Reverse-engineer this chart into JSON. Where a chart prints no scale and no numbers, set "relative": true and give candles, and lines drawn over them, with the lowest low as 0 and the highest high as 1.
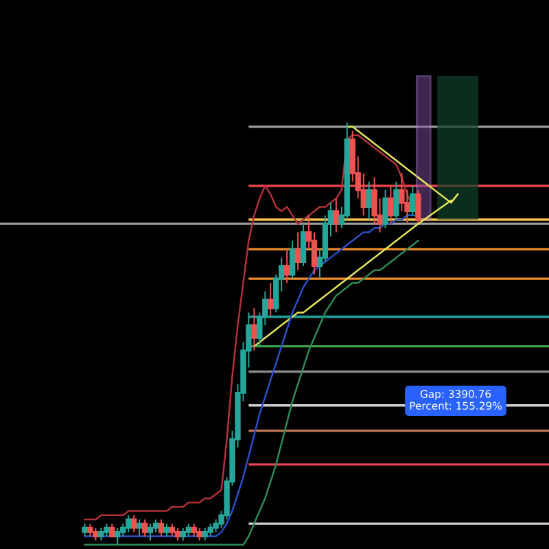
{
  "chart_data": {
    "type": "candlestick",
    "relative": true,
    "categories": [
      null,
      null,
      null,
      null,
      null,
      null,
      null,
      null,
      null,
      null,
      null,
      null,
      null,
      null,
      null,
      null,
      null,
      null,
      null,
      null,
      null,
      null,
      null,
      null,
      null,
      null,
      null,
      null,
      null,
      null,
      null,
      null,
      null,
      null,
      null,
      null,
      null,
      null,
      null,
      null,
      null,
      null,
      null,
      null,
      null,
      null,
      null,
      null,
      null,
      null,
      null,
      null,
      null,
      null,
      null,
      null,
      null,
      null,
      null,
      null,
      null,
      null
    ],
    "ohlc": [
      [
        0.03,
        0.05,
        0.02,
        0.04
      ],
      [
        0.04,
        0.05,
        0.02,
        0.03
      ],
      [
        0.03,
        0.04,
        0.01,
        0.02
      ],
      [
        0.02,
        0.04,
        0.01,
        0.03
      ],
      [
        0.03,
        0.05,
        0.02,
        0.04
      ],
      [
        0.04,
        0.05,
        0.02,
        0.02
      ],
      [
        0.02,
        0.04,
        0.0,
        0.03
      ],
      [
        0.03,
        0.05,
        0.02,
        0.04
      ],
      [
        0.04,
        0.07,
        0.03,
        0.06
      ],
      [
        0.06,
        0.07,
        0.03,
        0.04
      ],
      [
        0.04,
        0.06,
        0.02,
        0.05
      ],
      [
        0.05,
        0.06,
        0.02,
        0.03
      ],
      [
        0.03,
        0.05,
        0.01,
        0.04
      ],
      [
        0.04,
        0.06,
        0.03,
        0.05
      ],
      [
        0.05,
        0.06,
        0.02,
        0.03
      ],
      [
        0.03,
        0.05,
        0.02,
        0.04
      ],
      [
        0.04,
        0.05,
        0.02,
        0.03
      ],
      [
        0.03,
        0.04,
        0.01,
        0.02
      ],
      [
        0.02,
        0.04,
        0.01,
        0.03
      ],
      [
        0.03,
        0.05,
        0.02,
        0.04
      ],
      [
        0.04,
        0.05,
        0.02,
        0.03
      ],
      [
        0.03,
        0.04,
        0.01,
        0.02
      ],
      [
        0.02,
        0.04,
        0.01,
        0.03
      ],
      [
        0.03,
        0.05,
        0.02,
        0.04
      ],
      [
        0.04,
        0.06,
        0.03,
        0.05
      ],
      [
        0.05,
        0.08,
        0.04,
        0.07
      ],
      [
        0.07,
        0.16,
        0.06,
        0.15
      ],
      [
        0.15,
        0.27,
        0.14,
        0.25
      ],
      [
        0.25,
        0.38,
        0.23,
        0.36
      ],
      [
        0.36,
        0.48,
        0.34,
        0.46
      ],
      [
        0.46,
        0.55,
        0.42,
        0.52
      ],
      [
        0.52,
        0.56,
        0.46,
        0.49
      ],
      [
        0.49,
        0.55,
        0.47,
        0.54
      ],
      [
        0.54,
        0.6,
        0.52,
        0.58
      ],
      [
        0.58,
        0.62,
        0.54,
        0.56
      ],
      [
        0.56,
        0.64,
        0.55,
        0.63
      ],
      [
        0.63,
        0.68,
        0.6,
        0.66
      ],
      [
        0.66,
        0.7,
        0.62,
        0.64
      ],
      [
        0.64,
        0.72,
        0.63,
        0.7
      ],
      [
        0.7,
        0.74,
        0.65,
        0.67
      ],
      [
        0.67,
        0.76,
        0.66,
        0.74
      ],
      [
        0.74,
        0.78,
        0.7,
        0.72
      ],
      [
        0.72,
        0.74,
        0.64,
        0.66
      ],
      [
        0.66,
        0.7,
        0.63,
        0.68
      ],
      [
        0.68,
        0.78,
        0.67,
        0.76
      ],
      [
        0.76,
        0.81,
        0.73,
        0.79
      ],
      [
        0.79,
        0.82,
        0.74,
        0.76
      ],
      [
        0.76,
        0.8,
        0.75,
        0.78
      ],
      [
        0.78,
        1.0,
        0.77,
        0.96
      ],
      [
        0.96,
        0.98,
        0.86,
        0.88
      ],
      [
        0.88,
        0.92,
        0.82,
        0.84
      ],
      [
        0.84,
        0.88,
        0.78,
        0.8
      ],
      [
        0.8,
        0.86,
        0.77,
        0.84
      ],
      [
        0.84,
        0.87,
        0.76,
        0.78
      ],
      [
        0.78,
        0.82,
        0.74,
        0.76
      ],
      [
        0.76,
        0.84,
        0.75,
        0.82
      ],
      [
        0.82,
        0.85,
        0.76,
        0.78
      ],
      [
        0.78,
        0.86,
        0.77,
        0.84
      ],
      [
        0.84,
        0.88,
        0.79,
        0.81
      ],
      [
        0.81,
        0.84,
        0.76,
        0.79
      ],
      [
        0.79,
        0.85,
        0.78,
        0.83
      ],
      [
        0.83,
        0.84,
        0.76,
        0.77
      ]
    ],
    "series": [
      {
        "type": "line",
        "color": "#b2303a",
        "values": [
          0.06,
          0.06,
          0.06,
          0.07,
          0.07,
          0.07,
          0.07,
          0.07,
          0.08,
          0.08,
          0.08,
          0.08,
          0.08,
          0.08,
          0.08,
          0.08,
          0.09,
          0.09,
          0.09,
          0.1,
          0.1,
          0.1,
          0.11,
          0.11,
          0.12,
          0.13,
          0.25,
          0.4,
          0.52,
          0.62,
          0.72,
          0.78,
          0.82,
          0.85,
          0.83,
          0.8,
          0.79,
          0.8,
          0.78,
          0.76,
          0.77,
          0.78,
          0.79,
          0.8,
          0.8,
          0.81,
          0.82,
          0.84,
          0.96,
          0.97,
          0.97,
          0.96,
          0.95,
          0.94,
          0.93,
          0.92,
          0.91,
          0.9,
          0.87,
          0.83,
          0.8,
          0.78
        ]
      },
      {
        "type": "line",
        "color": "#2e8b57",
        "values": [
          0.0,
          0.0,
          0.0,
          0.0,
          0.0,
          0.0,
          0.0,
          0.0,
          0.0,
          0.0,
          0.0,
          0.0,
          0.0,
          0.0,
          0.0,
          0.0,
          0.0,
          0.0,
          0.0,
          0.0,
          0.0,
          0.0,
          0.0,
          0.0,
          0.0,
          0.0,
          0.0,
          0.0,
          0.0,
          0.0,
          0.02,
          0.05,
          0.08,
          0.11,
          0.15,
          0.19,
          0.24,
          0.29,
          0.34,
          0.38,
          0.42,
          0.46,
          0.49,
          0.52,
          0.55,
          0.57,
          0.59,
          0.6,
          0.61,
          0.62,
          0.62,
          0.63,
          0.64,
          0.65,
          0.65,
          0.66,
          0.67,
          0.68,
          0.69,
          0.7,
          0.71,
          0.72
        ]
      },
      {
        "type": "line",
        "color": "#e6e65a",
        "values": [
          null,
          null,
          null,
          null,
          null,
          null,
          null,
          null,
          null,
          null,
          null,
          null,
          null,
          null,
          null,
          null,
          null,
          null,
          null,
          null,
          null,
          null,
          null,
          null,
          null,
          null,
          null,
          null,
          null,
          null,
          null,
          null,
          null,
          null,
          null,
          null,
          null,
          null,
          null,
          null,
          null,
          null,
          null,
          null,
          null,
          null,
          null,
          null,
          0.99,
          0.99,
          0.98,
          0.97,
          0.96,
          0.95,
          0.94,
          0.93,
          0.92,
          0.91,
          0.9,
          0.89,
          0.88,
          0.87
        ]
      },
      {
        "type": "line",
        "color": "#e6e65a",
        "values": [
          null,
          null,
          null,
          null,
          null,
          null,
          null,
          null,
          null,
          null,
          null,
          null,
          null,
          null,
          null,
          null,
          null,
          null,
          null,
          null,
          null,
          null,
          null,
          null,
          null,
          null,
          null,
          null,
          null,
          null,
          null,
          0.47,
          0.48,
          0.49,
          0.5,
          0.51,
          0.52,
          0.53,
          0.54,
          0.55,
          0.55,
          0.56,
          0.57,
          0.58,
          0.59,
          0.6,
          0.61,
          0.62,
          0.63,
          0.64,
          0.65,
          0.66,
          0.67,
          0.68,
          0.69,
          0.7,
          0.71,
          0.72,
          0.73,
          0.74,
          0.75,
          0.76
        ]
      },
      {
        "type": "line",
        "color": "#2950c8",
        "values": [
          0.02,
          0.02,
          0.02,
          0.02,
          0.02,
          0.02,
          0.02,
          0.02,
          0.02,
          0.02,
          0.02,
          0.02,
          0.02,
          0.02,
          0.02,
          0.02,
          0.02,
          0.02,
          0.02,
          0.02,
          0.02,
          0.02,
          0.02,
          0.02,
          0.02,
          0.03,
          0.05,
          0.08,
          0.12,
          0.16,
          0.21,
          0.26,
          0.31,
          0.35,
          0.39,
          0.43,
          0.47,
          0.51,
          0.55,
          0.58,
          0.61,
          0.63,
          0.65,
          0.66,
          0.67,
          0.68,
          0.69,
          0.7,
          0.71,
          0.72,
          0.73,
          0.74,
          0.74,
          0.75,
          0.75,
          0.76,
          0.76,
          0.77,
          0.77,
          0.78,
          0.78,
          0.78
        ]
      }
    ],
    "ref_lines": [
      {
        "axis": "y",
        "value": 0.99,
        "color": "#9e9e9e"
      },
      {
        "axis": "y",
        "value": 0.85,
        "color": "#e8454f"
      },
      {
        "axis": "y",
        "value": 0.77,
        "color": "#f2c14e"
      },
      {
        "axis": "y",
        "value": 0.76,
        "color": "#9e9e9e"
      },
      {
        "axis": "y",
        "value": 0.7,
        "color": "#f08c2a"
      },
      {
        "axis": "y",
        "value": 0.63,
        "color": "#f08c2a"
      },
      {
        "axis": "y",
        "value": 0.54,
        "color": "#1aa39a"
      },
      {
        "axis": "y",
        "value": 0.47,
        "color": "#3f9b45"
      },
      {
        "axis": "y",
        "value": 0.41,
        "color": "#8a8a8a"
      },
      {
        "axis": "y",
        "value": 0.33,
        "color": "#d0d0d0"
      },
      {
        "axis": "y",
        "value": 0.27,
        "color": "#c4785a"
      },
      {
        "axis": "y",
        "value": 0.19,
        "color": "#e8454f"
      },
      {
        "axis": "y",
        "value": 0.05,
        "color": "#d0d0d0"
      }
    ],
    "annotations": [
      "Gap: 3390.76\nPercent: 155.29%"
    ]
  }
}
